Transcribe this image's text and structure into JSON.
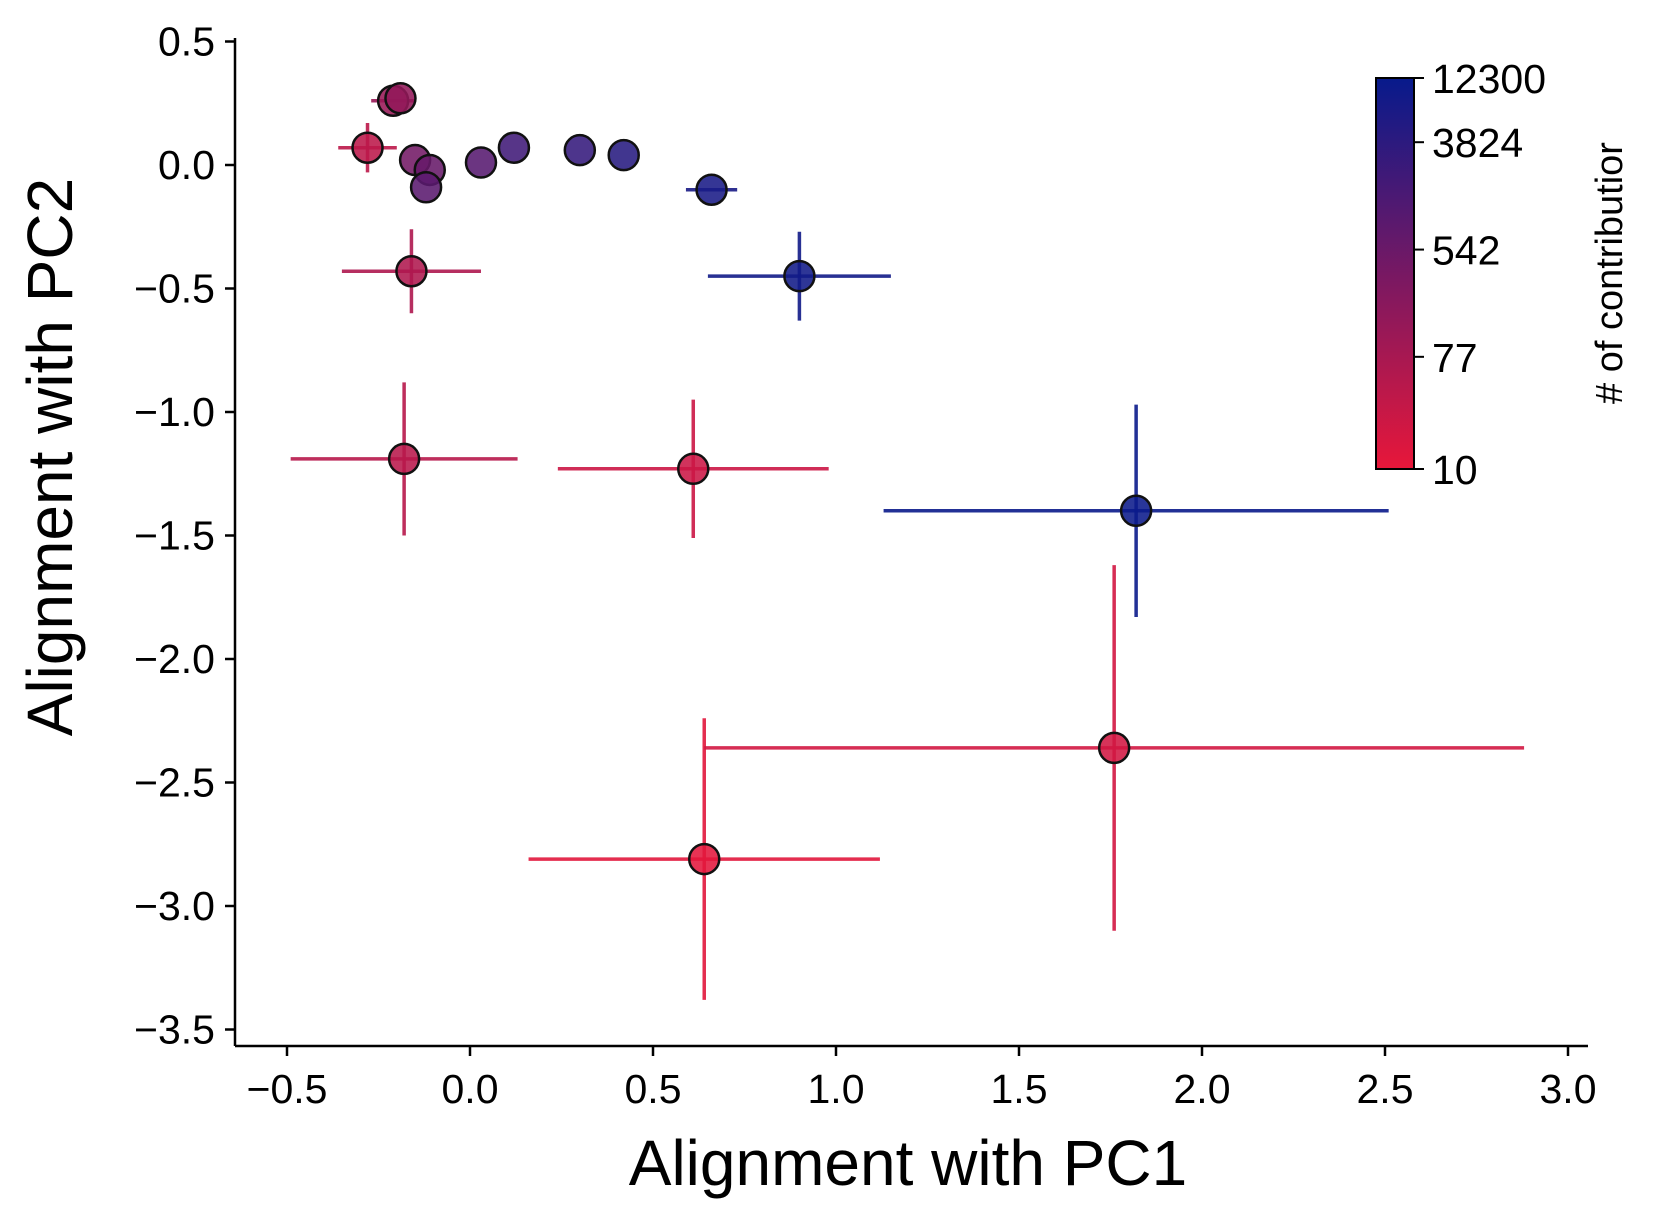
{
  "chart_data": {
    "type": "scatter",
    "title": "",
    "xlabel": "Alignment with PC1",
    "ylabel": "Alignment with PC2",
    "xlim": [
      -0.65,
      3.05
    ],
    "ylim": [
      -3.55,
      0.5
    ],
    "xticks": [
      -0.5,
      0.0,
      0.5,
      1.0,
      1.5,
      2.0,
      2.5,
      3.0
    ],
    "xtick_labels": [
      "−0.5",
      "0.0",
      "0.5",
      "1.0",
      "1.5",
      "2.0",
      "2.5",
      "3.0"
    ],
    "yticks": [
      0.5,
      0.0,
      -0.5,
      -1.0,
      -1.5,
      -2.0,
      -2.5,
      -3.0,
      -3.5
    ],
    "ytick_labels": [
      "0.5",
      "0.0",
      "−0.5",
      "−1.0",
      "−1.5",
      "−2.0",
      "−2.5",
      "−3.0",
      "−3.5"
    ],
    "grid": false,
    "colorbar": {
      "title": "# of contributior",
      "scale": "log",
      "ticks": [
        12300,
        3824,
        542,
        77,
        10
      ],
      "tick_labels": [
        "12300",
        "3824",
        "542",
        "77",
        "10"
      ],
      "color_low": "#e8173a",
      "color_high": "#071a8c"
    },
    "points": [
      {
        "x": 0.64,
        "y": -2.81,
        "xerr": [
          0.48,
          0.48
        ],
        "yerr": [
          0.57,
          0.57
        ],
        "n": 12
      },
      {
        "x": 1.76,
        "y": -2.36,
        "xerr": [
          1.12,
          1.12
        ],
        "yerr": [
          0.74,
          0.74
        ],
        "n": 20
      },
      {
        "x": 0.61,
        "y": -1.23,
        "xerr": [
          0.37,
          0.37
        ],
        "yerr": [
          0.28,
          0.28
        ],
        "n": 25
      },
      {
        "x": -0.18,
        "y": -1.19,
        "xerr": [
          0.31,
          0.31
        ],
        "yerr": [
          0.31,
          0.31
        ],
        "n": 45
      },
      {
        "x": 1.82,
        "y": -1.4,
        "xerr": [
          0.69,
          0.69
        ],
        "yerr": [
          0.43,
          0.43
        ],
        "n": 11000
      },
      {
        "x": -0.16,
        "y": -0.43,
        "xerr": [
          0.19,
          0.19
        ],
        "yerr": [
          0.17,
          0.17
        ],
        "n": 60
      },
      {
        "x": 0.9,
        "y": -0.45,
        "xerr": [
          0.25,
          0.25
        ],
        "yerr": [
          0.18,
          0.18
        ],
        "n": 9000
      },
      {
        "x": 0.66,
        "y": -0.1,
        "xerr": [
          0.07,
          0.07
        ],
        "yerr": [
          0.0,
          0.0
        ],
        "n": 7000
      },
      {
        "x": -0.28,
        "y": 0.07,
        "xerr": [
          0.08,
          0.08
        ],
        "yerr": [
          0.1,
          0.1
        ],
        "n": 40
      },
      {
        "x": -0.21,
        "y": 0.26,
        "xerr": [
          0.06,
          0.06
        ],
        "yerr": [
          0.0,
          0.0
        ],
        "n": 120
      },
      {
        "x": -0.19,
        "y": 0.27,
        "xerr": [
          0.0,
          0.0
        ],
        "yerr": [
          0.0,
          0.0
        ],
        "n": 150
      },
      {
        "x": -0.15,
        "y": 0.02,
        "xerr": [
          0.0,
          0.0
        ],
        "yerr": [
          0.0,
          0.0
        ],
        "n": 400
      },
      {
        "x": -0.11,
        "y": -0.02,
        "xerr": [
          0.0,
          0.0
        ],
        "yerr": [
          0.0,
          0.0
        ],
        "n": 600
      },
      {
        "x": -0.12,
        "y": -0.09,
        "xerr": [
          0.0,
          0.0
        ],
        "yerr": [
          0.0,
          0.0
        ],
        "n": 900
      },
      {
        "x": 0.03,
        "y": 0.01,
        "xerr": [
          0.0,
          0.0
        ],
        "yerr": [
          0.0,
          0.0
        ],
        "n": 1000
      },
      {
        "x": 0.12,
        "y": 0.07,
        "xerr": [
          0.0,
          0.0
        ],
        "yerr": [
          0.0,
          0.0
        ],
        "n": 2000
      },
      {
        "x": 0.3,
        "y": 0.06,
        "xerr": [
          0.0,
          0.0
        ],
        "yerr": [
          0.0,
          0.0
        ],
        "n": 3000
      },
      {
        "x": 0.42,
        "y": 0.04,
        "xerr": [
          0.0,
          0.0
        ],
        "yerr": [
          0.0,
          0.0
        ],
        "n": 4500
      }
    ]
  }
}
